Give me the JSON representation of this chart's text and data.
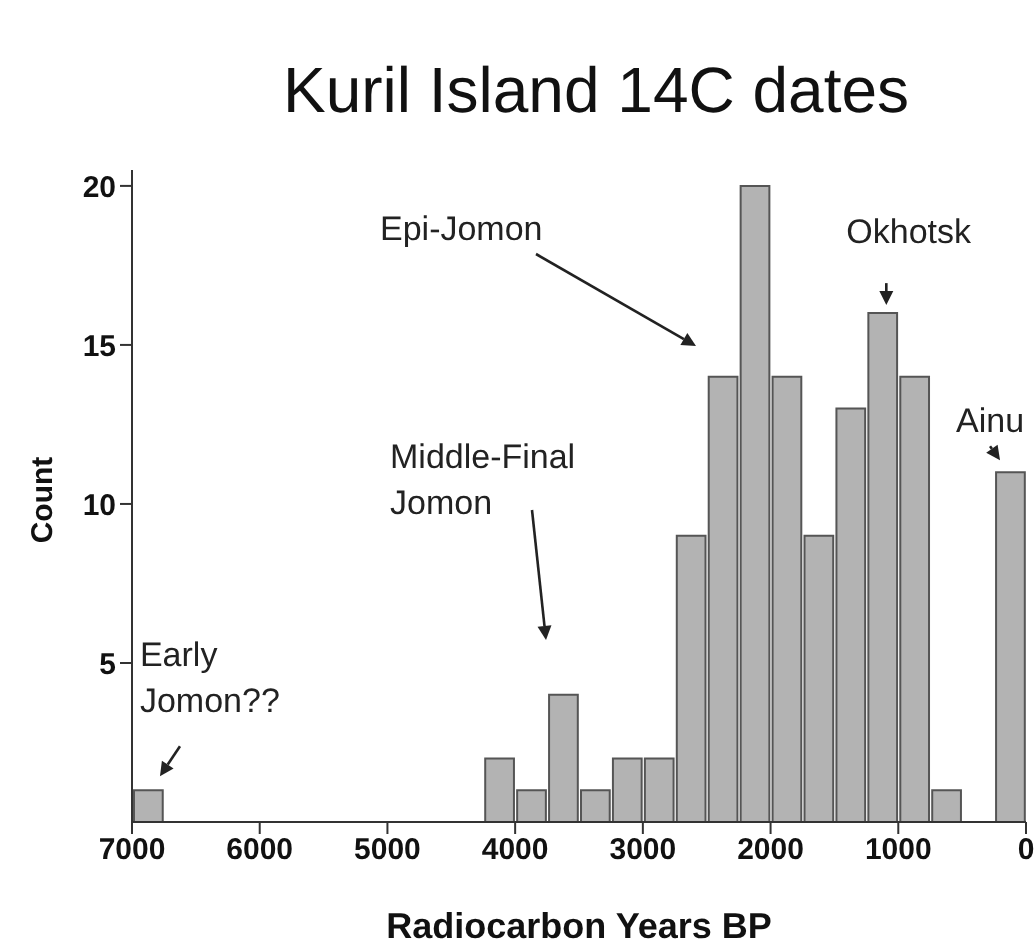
{
  "chart_data": {
    "type": "histogram",
    "title": "Kuril Island 14C dates",
    "xlabel": "Radiocarbon Years BP",
    "ylabel": "Count",
    "bins": [
      0,
      250,
      500,
      750,
      1000,
      1250,
      1500,
      1750,
      2000,
      2250,
      2500,
      2750,
      3000,
      3250,
      3500,
      3750,
      4000,
      4250,
      4500,
      4750,
      5000,
      5250,
      5500,
      5750,
      6000,
      6250,
      6500,
      6750,
      7000
    ],
    "values": [
      11,
      0,
      1,
      14,
      16,
      13,
      9,
      14,
      20,
      14,
      9,
      2,
      2,
      1,
      4,
      1,
      2,
      0,
      0,
      0,
      0,
      0,
      0,
      0,
      0,
      0,
      0,
      1
    ],
    "color": "#b3b3b3",
    "xlim": [
      7000,
      0
    ],
    "xticks": [
      7000,
      6000,
      5000,
      4000,
      3000,
      2000,
      1000,
      0
    ],
    "ylim": [
      0,
      20.5
    ],
    "yticks": [
      5,
      10,
      15,
      20
    ],
    "grid": false,
    "annotations": [
      {
        "text": "Early\nJomon??",
        "x": 6875,
        "y": 1
      },
      "Middle-Final\nJomon",
      "Epi-Jomon",
      {
        "text": "Okhotsk",
        "x": 1125,
        "y": 16
      },
      {
        "text": "Ainu",
        "x": 125,
        "y": 11
      }
    ]
  }
}
